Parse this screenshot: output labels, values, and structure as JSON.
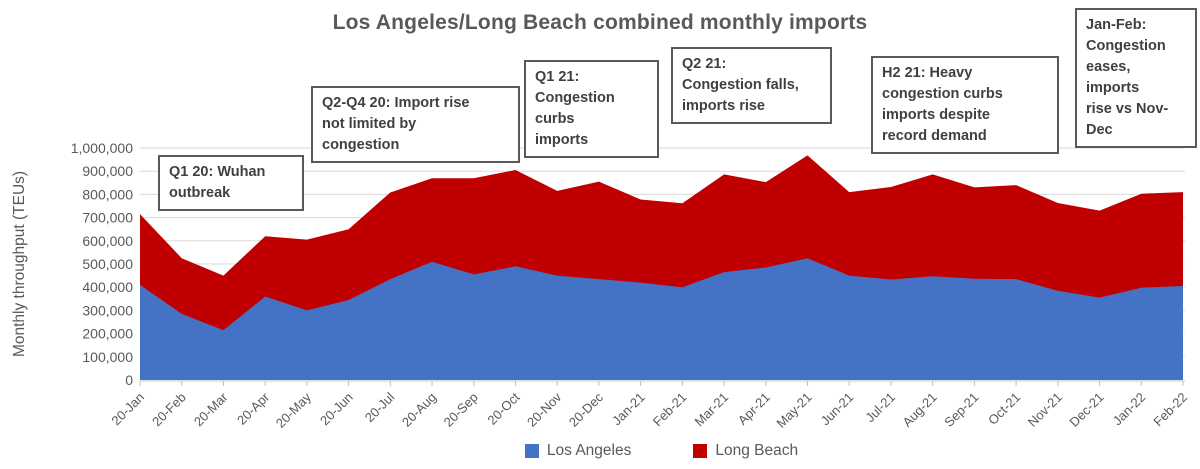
{
  "title": "Los Angeles/Long Beach combined monthly imports",
  "colors": {
    "los_angeles": "#4472C4",
    "long_beach": "#C00000",
    "text_gray": "#595959",
    "annotation_text": "#404040",
    "gridline": "#D9D9D9",
    "tick": "#BFBFBF"
  },
  "legend": {
    "items": [
      {
        "label": "Los Angeles",
        "color": "#4472C4"
      },
      {
        "label": "Long Beach",
        "color": "#C00000"
      }
    ]
  },
  "annotations": [
    {
      "id": "q1-20",
      "text": "Q1 20: Wuhan\noutbreak"
    },
    {
      "id": "q2-q4-20",
      "text": "Q2-Q4 20: Import rise\nnot limited by\ncongestion"
    },
    {
      "id": "q1-21",
      "text": "Q1 21:\nCongestion\ncurbs\nimports"
    },
    {
      "id": "q2-21",
      "text": "Q2 21:\nCongestion falls,\nimports rise"
    },
    {
      "id": "h2-21",
      "text": "H2 21: Heavy\ncongestion curbs\nimports despite\nrecord demand"
    },
    {
      "id": "jan-feb",
      "text": "Jan-Feb:\nCongestion\neases,\nimports\nrise vs Nov-\nDec"
    }
  ],
  "chart_data": {
    "type": "area",
    "stacked": true,
    "title": "Los Angeles/Long Beach combined monthly imports",
    "xlabel": "",
    "ylabel": "Monthly throughput (TEUs)",
    "ylim": [
      0,
      1000000
    ],
    "ytick_interval": 100000,
    "grid": "horizontal",
    "legend_position": "bottom",
    "categories": [
      "20-Jan",
      "20-Feb",
      "20-Mar",
      "20-Apr",
      "20-May",
      "20-Jun",
      "20-Jul",
      "20-Aug",
      "20-Sep",
      "20-Oct",
      "20-Nov",
      "20-Dec",
      "Jan-21",
      "Feb-21",
      "Mar-21",
      "Apr-21",
      "May-21",
      "Jun-21",
      "Jul-21",
      "Aug-21",
      "Sep-21",
      "Oct-21",
      "Nov-21",
      "Dec-21",
      "Jan-22",
      "Feb-22"
    ],
    "series": [
      {
        "name": "Los Angeles",
        "color": "#4472C4",
        "values": [
          410000,
          285000,
          215000,
          360000,
          300000,
          345000,
          435000,
          510000,
          455000,
          490000,
          450000,
          435000,
          420000,
          400000,
          465000,
          485000,
          525000,
          450000,
          433000,
          447000,
          436000,
          435000,
          385000,
          355000,
          398000,
          405000
        ]
      },
      {
        "name": "Long Beach",
        "color": "#C00000",
        "values": [
          305000,
          240000,
          235000,
          260000,
          305000,
          305000,
          373000,
          360000,
          415000,
          415000,
          365000,
          420000,
          358000,
          362000,
          421000,
          368000,
          443000,
          360000,
          399000,
          439000,
          394000,
          405000,
          378000,
          375000,
          405000,
          405000
        ]
      }
    ]
  }
}
